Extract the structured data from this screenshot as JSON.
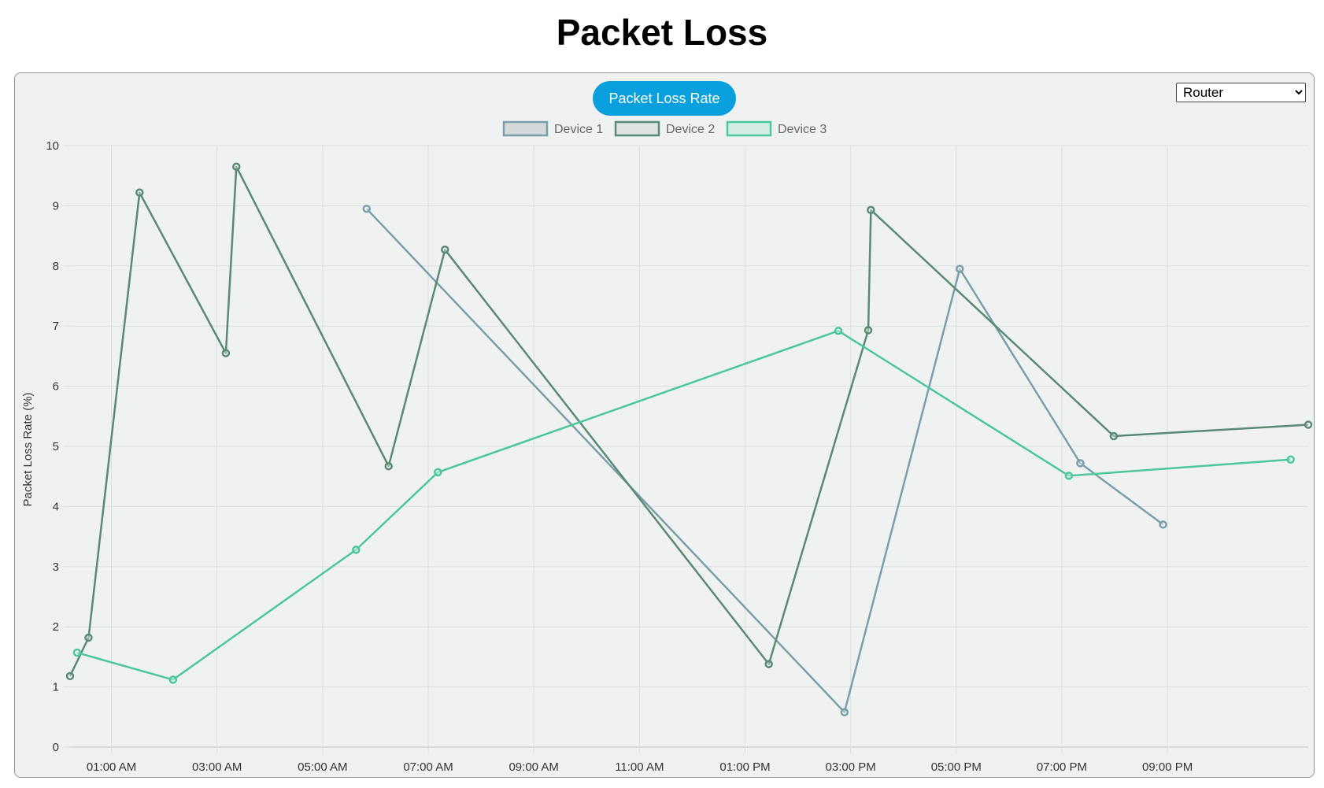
{
  "page": {
    "title": "Packet Loss"
  },
  "controls": {
    "metric_button_label": "Packet Loss Rate",
    "device_type_selected": "Router"
  },
  "colors": {
    "device_1": "#7a9faa",
    "device_2": "#5a8a76",
    "device_3": "#4cc79a",
    "button": "#0aa0dd",
    "panel": "#f0f2f2"
  },
  "chart_data": {
    "type": "line",
    "title": "",
    "xlabel": "",
    "ylabel": "Packet Loss Rate (%)",
    "ylim": [
      0,
      10
    ],
    "yticks": [
      0,
      1,
      2,
      3,
      4,
      5,
      6,
      7,
      8,
      9,
      10
    ],
    "xlim": [
      "00:13",
      "23:40"
    ],
    "xticks": [
      "01:00 AM",
      "03:00 AM",
      "05:00 AM",
      "07:00 AM",
      "09:00 AM",
      "11:00 AM",
      "01:00 PM",
      "03:00 PM",
      "05:00 PM",
      "07:00 PM",
      "09:00 PM"
    ],
    "grid": true,
    "legend_position": "top-center",
    "series": [
      {
        "name": "Device 1",
        "color": "#7a9faa",
        "points": [
          {
            "x": "05:50",
            "y": 8.95
          },
          {
            "x": "14:53",
            "y": 0.58
          },
          {
            "x": "17:04",
            "y": 7.95
          },
          {
            "x": "19:21",
            "y": 4.72
          },
          {
            "x": "20:55",
            "y": 3.7
          }
        ]
      },
      {
        "name": "Device 2",
        "color": "#5a8a76",
        "points": [
          {
            "x": "00:13",
            "y": 1.18
          },
          {
            "x": "00:34",
            "y": 1.82
          },
          {
            "x": "01:32",
            "y": 9.22
          },
          {
            "x": "03:10",
            "y": 6.55
          },
          {
            "x": "03:22",
            "y": 9.65
          },
          {
            "x": "06:15",
            "y": 4.67
          },
          {
            "x": "07:19",
            "y": 8.27
          },
          {
            "x": "13:27",
            "y": 1.38
          },
          {
            "x": "15:20",
            "y": 6.93
          },
          {
            "x": "15:23",
            "y": 8.93
          },
          {
            "x": "19:59",
            "y": 5.17
          },
          {
            "x": "23:40",
            "y": 5.36
          }
        ]
      },
      {
        "name": "Device 3",
        "color": "#4cc79a",
        "points": [
          {
            "x": "00:21",
            "y": 1.57
          },
          {
            "x": "02:10",
            "y": 1.12
          },
          {
            "x": "05:38",
            "y": 3.28
          },
          {
            "x": "07:11",
            "y": 4.57
          },
          {
            "x": "14:46",
            "y": 6.92
          },
          {
            "x": "19:08",
            "y": 4.51
          },
          {
            "x": "23:20",
            "y": 4.78
          }
        ]
      }
    ]
  }
}
